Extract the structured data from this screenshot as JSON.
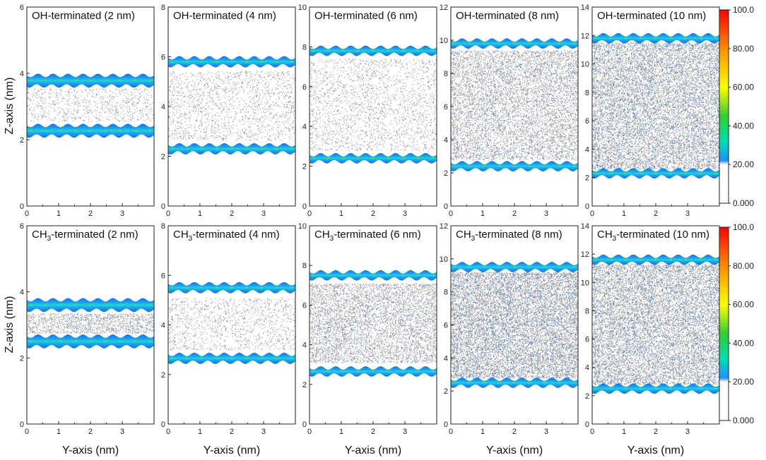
{
  "figure": {
    "x_axis_label": "Y-axis (nm)",
    "y_axis_label": "Z-axis (nm)",
    "colorbar_ticks": [
      "100.0",
      "80.00",
      "60.00",
      "40.00",
      "20.00",
      "0.000"
    ],
    "colorbar_values": [
      100,
      80,
      60,
      40,
      20,
      0
    ],
    "colorbar_colors": [
      "#ff0000",
      "#ff8c00",
      "#ffff00",
      "#32cd32",
      "#00e0b0",
      "#1e90ff",
      "#ffffff"
    ]
  },
  "chart_data": [
    {
      "type": "heatmap",
      "row": "OH",
      "title_prefix": "OH",
      "title_sub": "",
      "title_suffix": "-terminated (2 nm)",
      "xlabel": "Y-axis (nm)",
      "ylabel": "Z-axis (nm)",
      "xlim": [
        0,
        4
      ],
      "ylim": [
        0,
        6
      ],
      "x_ticks": [
        0,
        1,
        2,
        3
      ],
      "y_ticks": [
        0,
        2,
        4,
        6
      ],
      "walls": [
        2.27,
        3.78
      ],
      "fluid_range": [
        2.55,
        3.55
      ],
      "fluid_density": "low"
    },
    {
      "type": "heatmap",
      "row": "OH",
      "title_prefix": "OH",
      "title_sub": "",
      "title_suffix": "-terminated (4 nm)",
      "xlabel": "Y-axis (nm)",
      "ylabel": "Z-axis (nm)",
      "xlim": [
        0,
        4
      ],
      "ylim": [
        0,
        8
      ],
      "x_ticks": [
        0,
        1,
        2,
        3
      ],
      "y_ticks": [
        0,
        2,
        4,
        6,
        8
      ],
      "walls": [
        2.3,
        5.8
      ],
      "fluid_range": [
        2.65,
        5.45
      ],
      "fluid_density": "low"
    },
    {
      "type": "heatmap",
      "row": "OH",
      "title_prefix": "OH",
      "title_sub": "",
      "title_suffix": "-terminated (6 nm)",
      "xlabel": "Y-axis (nm)",
      "ylabel": "Z-axis (nm)",
      "xlim": [
        0,
        4
      ],
      "ylim": [
        0,
        10
      ],
      "x_ticks": [
        0,
        1,
        2,
        3
      ],
      "y_ticks": [
        0,
        2,
        4,
        6,
        8,
        10
      ],
      "walls": [
        2.4,
        7.8
      ],
      "fluid_range": [
        2.8,
        7.4
      ],
      "fluid_density": "low"
    },
    {
      "type": "heatmap",
      "row": "OH",
      "title_prefix": "OH",
      "title_sub": "",
      "title_suffix": "-terminated (8 nm)",
      "xlabel": "Y-axis (nm)",
      "ylabel": "Z-axis (nm)",
      "xlim": [
        0,
        4
      ],
      "ylim": [
        0,
        12
      ],
      "x_ticks": [
        0,
        1,
        2,
        3
      ],
      "y_ticks": [
        0,
        2,
        4,
        6,
        8,
        10,
        12
      ],
      "walls": [
        2.4,
        9.8
      ],
      "fluid_range": [
        2.8,
        9.4
      ],
      "fluid_density": "medium"
    },
    {
      "type": "heatmap",
      "row": "OH",
      "title_prefix": "OH",
      "title_sub": "",
      "title_suffix": "-terminated (10 nm)",
      "xlabel": "Y-axis (nm)",
      "ylabel": "Z-axis (nm)",
      "xlim": [
        0,
        4
      ],
      "ylim": [
        0,
        14
      ],
      "x_ticks": [
        0,
        1,
        2,
        3
      ],
      "y_ticks": [
        0,
        2,
        4,
        6,
        8,
        10,
        12,
        14
      ],
      "walls": [
        2.3,
        11.8
      ],
      "fluid_range": [
        2.6,
        11.5
      ],
      "fluid_density": "high"
    },
    {
      "type": "heatmap",
      "row": "CH3",
      "title_prefix": "CH",
      "title_sub": "3",
      "title_suffix": "-terminated (2 nm)",
      "xlabel": "Y-axis (nm)",
      "ylabel": "Z-axis (nm)",
      "xlim": [
        0,
        4
      ],
      "ylim": [
        0,
        6
      ],
      "x_ticks": [
        0,
        1,
        2,
        3
      ],
      "y_ticks": [
        0,
        2,
        4,
        6
      ],
      "walls": [
        2.5,
        3.6
      ],
      "fluid_range": [
        2.75,
        3.35
      ],
      "fluid_density": "medium"
    },
    {
      "type": "heatmap",
      "row": "CH3",
      "title_prefix": "CH",
      "title_sub": "3",
      "title_suffix": "-terminated (4 nm)",
      "xlabel": "Y-axis (nm)",
      "ylabel": "Z-axis (nm)",
      "xlim": [
        0,
        4
      ],
      "ylim": [
        0,
        8
      ],
      "x_ticks": [
        0,
        1,
        2,
        3
      ],
      "y_ticks": [
        0,
        2,
        4,
        6,
        8
      ],
      "walls": [
        2.65,
        5.5
      ],
      "fluid_range": [
        3.0,
        5.1
      ],
      "fluid_density": "low"
    },
    {
      "type": "heatmap",
      "row": "CH3",
      "title_prefix": "CH",
      "title_sub": "3",
      "title_suffix": "-terminated (6 nm)",
      "xlabel": "Y-axis (nm)",
      "ylabel": "Z-axis (nm)",
      "xlim": [
        0,
        4
      ],
      "ylim": [
        0,
        10
      ],
      "x_ticks": [
        0,
        1,
        2,
        3
      ],
      "y_ticks": [
        0,
        2,
        4,
        6,
        8,
        10
      ],
      "walls": [
        2.65,
        7.5
      ],
      "fluid_range": [
        3.1,
        7.1
      ],
      "fluid_density": "medium"
    },
    {
      "type": "heatmap",
      "row": "CH3",
      "title_prefix": "CH",
      "title_sub": "3",
      "title_suffix": "-terminated (8 nm)",
      "xlabel": "Y-axis (nm)",
      "ylabel": "Z-axis (nm)",
      "xlim": [
        0,
        4
      ],
      "ylim": [
        0,
        12
      ],
      "x_ticks": [
        0,
        1,
        2,
        3
      ],
      "y_ticks": [
        0,
        2,
        4,
        6,
        8,
        10,
        12
      ],
      "walls": [
        2.5,
        9.5
      ],
      "fluid_range": [
        2.8,
        9.2
      ],
      "fluid_density": "high"
    },
    {
      "type": "heatmap",
      "row": "CH3",
      "title_prefix": "CH",
      "title_sub": "3",
      "title_suffix": "-terminated (10 nm)",
      "xlabel": "Y-axis (nm)",
      "ylabel": "Z-axis (nm)",
      "xlim": [
        0,
        4
      ],
      "ylim": [
        0,
        14
      ],
      "x_ticks": [
        0,
        1,
        2,
        3
      ],
      "y_ticks": [
        0,
        2,
        4,
        6,
        8,
        10,
        12,
        14
      ],
      "walls": [
        2.5,
        11.6
      ],
      "fluid_range": [
        2.8,
        11.3
      ],
      "fluid_density": "high"
    }
  ]
}
